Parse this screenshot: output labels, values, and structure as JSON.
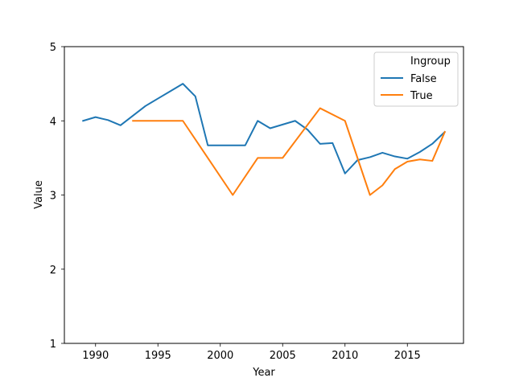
{
  "chart_data": {
    "type": "line",
    "xlabel": "Year",
    "ylabel": "Value",
    "xlim": [
      1987.5,
      2019.5
    ],
    "ylim": [
      1,
      5
    ],
    "xticks": [
      1990,
      1995,
      2000,
      2005,
      2010,
      2015
    ],
    "yticks": [
      1,
      2,
      3,
      4,
      5
    ],
    "grid": false,
    "legend": {
      "title": "Ingroup",
      "placement": "top-right"
    },
    "series": [
      {
        "name": "False",
        "color": "#1f77b4",
        "points": [
          [
            1989,
            4.0
          ],
          [
            1990,
            4.05
          ],
          [
            1991,
            4.01
          ],
          [
            1992,
            3.94
          ],
          [
            1993,
            4.07
          ],
          [
            1994,
            4.2
          ],
          [
            1995,
            4.3
          ],
          [
            1996,
            4.4
          ],
          [
            1997,
            4.5
          ],
          [
            1998,
            4.33
          ],
          [
            1999,
            3.67
          ],
          [
            2000,
            3.67
          ],
          [
            2001,
            3.67
          ],
          [
            2002,
            3.67
          ],
          [
            2003,
            4.0
          ],
          [
            2004,
            3.9
          ],
          [
            2005,
            3.95
          ],
          [
            2006,
            4.0
          ],
          [
            2007,
            3.88
          ],
          [
            2008,
            3.69
          ],
          [
            2009,
            3.7
          ],
          [
            2010,
            3.29
          ],
          [
            2011,
            3.47
          ],
          [
            2012,
            3.51
          ],
          [
            2013,
            3.57
          ],
          [
            2014,
            3.52
          ],
          [
            2015,
            3.49
          ],
          [
            2016,
            3.58
          ],
          [
            2017,
            3.69
          ],
          [
            2018,
            3.85
          ]
        ]
      },
      {
        "name": "True",
        "color": "#ff7f0e",
        "points": [
          [
            1993,
            4.0
          ],
          [
            1997,
            4.0
          ],
          [
            2001,
            3.0
          ],
          [
            2003,
            3.5
          ],
          [
            2005,
            3.5
          ],
          [
            2008,
            4.17
          ],
          [
            2010,
            4.0
          ],
          [
            2012,
            3.0
          ],
          [
            2013,
            3.13
          ],
          [
            2014,
            3.35
          ],
          [
            2015,
            3.45
          ],
          [
            2016,
            3.48
          ],
          [
            2017,
            3.46
          ],
          [
            2018,
            3.85
          ]
        ]
      }
    ]
  }
}
